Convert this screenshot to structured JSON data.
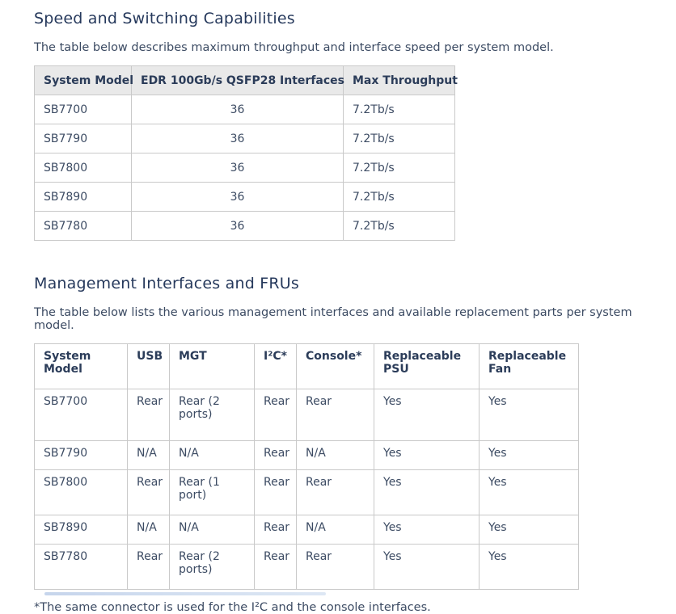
{
  "page": {
    "background_color": "#ffffff",
    "text_color": "#3c4b63",
    "heading_color": "#26395c",
    "table_border_color": "#c9c9c9",
    "table_header_bg": "#e9e9e9"
  },
  "section1": {
    "title": "Speed and Switching Capabilities",
    "intro": "The table below describes maximum throughput and interface speed per system model.",
    "table": {
      "headers": [
        "System Model",
        "EDR 100Gb/s QSFP28 Interfaces",
        "Max Throughput"
      ],
      "rows": [
        [
          "SB7700",
          "36",
          "7.2Tb/s"
        ],
        [
          "SB7790",
          "36",
          "7.2Tb/s"
        ],
        [
          "SB7800",
          "36",
          "7.2Tb/s"
        ],
        [
          "SB7890",
          "36",
          "7.2Tb/s"
        ],
        [
          "SB7780",
          "36",
          "7.2Tb/s"
        ]
      ]
    }
  },
  "section2": {
    "title": "Management Interfaces and FRUs",
    "intro": "The table below lists the various management interfaces and available replacement parts per system model.",
    "table": {
      "headers": [
        "System Model",
        "USB",
        "MGT",
        "I²C*",
        "Console*",
        "Replaceable PSU",
        "Replaceable Fan"
      ],
      "rows": [
        [
          "SB7700",
          "Rear",
          "Rear (2 ports)",
          "Rear",
          "Rear",
          "Yes",
          "Yes"
        ],
        [
          "SB7790",
          "N/A",
          "N/A",
          "Rear",
          "N/A",
          "Yes",
          "Yes"
        ],
        [
          "SB7800",
          "Rear",
          "Rear (1 port)",
          "Rear",
          "Rear",
          "Yes",
          "Yes"
        ],
        [
          "SB7890",
          "N/A",
          "N/A",
          "Rear",
          "N/A",
          "Yes",
          "Yes"
        ],
        [
          "SB7780",
          "Rear",
          "Rear (2 ports)",
          "Rear",
          "Rear",
          "Yes",
          "Yes"
        ]
      ]
    },
    "footnote": "*The same connector is used for the I²C and the console interfaces."
  }
}
